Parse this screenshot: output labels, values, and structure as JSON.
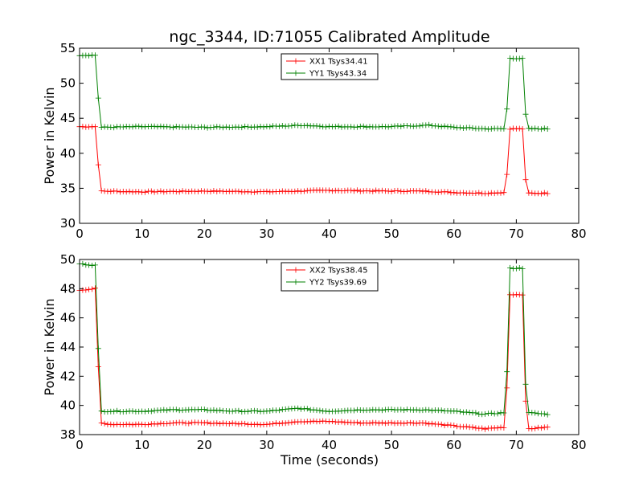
{
  "figure": {
    "title": "ngc_3344, ID:71055 Calibrated Amplitude",
    "xlabel": "Time (seconds)"
  },
  "chart_data": [
    {
      "type": "line",
      "ylabel": "Power in Kelvin",
      "xlim": [
        0,
        80
      ],
      "ylim": [
        30,
        55
      ],
      "xticks": [
        0,
        10,
        20,
        30,
        40,
        50,
        60,
        70,
        80
      ],
      "yticks": [
        30,
        35,
        40,
        45,
        50,
        55
      ],
      "legend_position": "top-center",
      "series": [
        {
          "name": "XX1 Tsys34.41",
          "color": "#ff0000",
          "points": [
            [
              0,
              43.8
            ],
            [
              2.5,
              43.8
            ],
            [
              2.9,
              39.7
            ],
            [
              3.3,
              34.6
            ],
            [
              10,
              34.5
            ],
            [
              20,
              34.6
            ],
            [
              30,
              34.5
            ],
            [
              40,
              34.7
            ],
            [
              50,
              34.6
            ],
            [
              55,
              34.6
            ],
            [
              60,
              34.4
            ],
            [
              65,
              34.3
            ],
            [
              68,
              34.4
            ],
            [
              68.5,
              37.0
            ],
            [
              69,
              43.5
            ],
            [
              71,
              43.5
            ],
            [
              71.3,
              37.4
            ],
            [
              71.8,
              34.3
            ],
            [
              75,
              34.3
            ]
          ]
        },
        {
          "name": "YY1 Tsys43.34",
          "color": "#008000",
          "points": [
            [
              0,
              54.0
            ],
            [
              2.5,
              54.0
            ],
            [
              2.9,
              49.3
            ],
            [
              3.3,
              43.7
            ],
            [
              10,
              43.8
            ],
            [
              20,
              43.7
            ],
            [
              30,
              43.8
            ],
            [
              36,
              44.0
            ],
            [
              40,
              43.8
            ],
            [
              50,
              43.8
            ],
            [
              56,
              44.0
            ],
            [
              60,
              43.7
            ],
            [
              65,
              43.5
            ],
            [
              68,
              43.5
            ],
            [
              68.5,
              46.3
            ],
            [
              69,
              53.6
            ],
            [
              71,
              53.5
            ],
            [
              71.3,
              46.9
            ],
            [
              71.8,
              43.5
            ],
            [
              75,
              43.5
            ]
          ]
        }
      ]
    },
    {
      "type": "line",
      "ylabel": "Power in Kelvin",
      "xlim": [
        0,
        80
      ],
      "ylim": [
        38,
        50
      ],
      "xticks": [
        0,
        10,
        20,
        30,
        40,
        50,
        60,
        70,
        80
      ],
      "yticks": [
        38,
        40,
        42,
        44,
        46,
        48,
        50
      ],
      "legend_position": "top-center",
      "series": [
        {
          "name": "XX2 Tsys38.45",
          "color": "#ff0000",
          "points": [
            [
              0,
              47.9
            ],
            [
              2.5,
              48.0
            ],
            [
              2.9,
              43.9
            ],
            [
              3.3,
              38.8
            ],
            [
              5,
              38.7
            ],
            [
              10,
              38.7
            ],
            [
              15,
              38.8
            ],
            [
              20,
              38.8
            ],
            [
              30,
              38.7
            ],
            [
              35,
              38.9
            ],
            [
              40,
              38.9
            ],
            [
              45,
              38.8
            ],
            [
              50,
              38.8
            ],
            [
              55,
              38.8
            ],
            [
              60,
              38.6
            ],
            [
              65,
              38.4
            ],
            [
              68,
              38.5
            ],
            [
              68.5,
              41.2
            ],
            [
              69,
              47.6
            ],
            [
              71,
              47.6
            ],
            [
              71.3,
              41.5
            ],
            [
              71.8,
              38.4
            ],
            [
              75,
              38.5
            ]
          ]
        },
        {
          "name": "YY2 Tsys39.69",
          "color": "#008000",
          "points": [
            [
              0,
              49.7
            ],
            [
              2.5,
              49.6
            ],
            [
              2.9,
              45.3
            ],
            [
              3.3,
              39.6
            ],
            [
              10,
              39.6
            ],
            [
              15,
              39.7
            ],
            [
              20,
              39.7
            ],
            [
              25,
              39.6
            ],
            [
              30,
              39.6
            ],
            [
              35,
              39.8
            ],
            [
              40,
              39.6
            ],
            [
              45,
              39.7
            ],
            [
              50,
              39.7
            ],
            [
              55,
              39.7
            ],
            [
              60,
              39.6
            ],
            [
              65,
              39.4
            ],
            [
              68,
              39.5
            ],
            [
              68.5,
              42.3
            ],
            [
              69,
              49.4
            ],
            [
              71,
              49.4
            ],
            [
              71.3,
              42.8
            ],
            [
              71.8,
              39.5
            ],
            [
              75,
              39.4
            ]
          ]
        }
      ]
    }
  ]
}
